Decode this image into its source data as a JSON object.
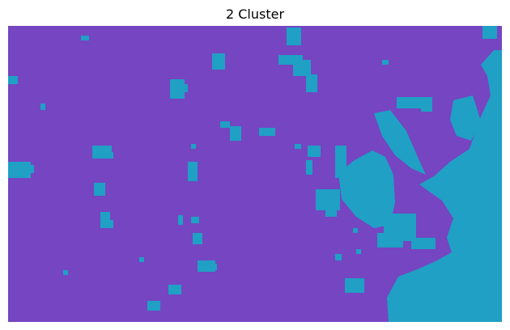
{
  "title": "2 Cluster",
  "palette": {
    "cluster_0": "#7545c2",
    "cluster_1": "#1fa0c4"
  },
  "legend": null
}
